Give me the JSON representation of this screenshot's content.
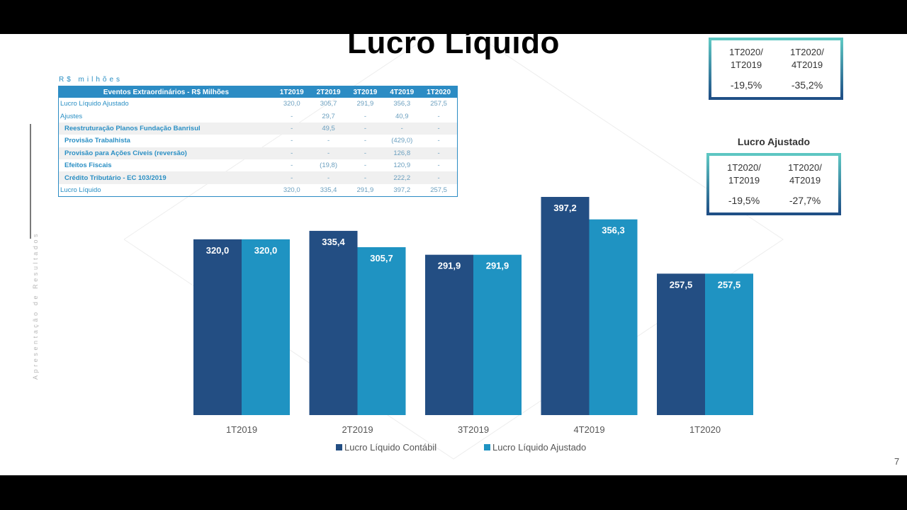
{
  "title": "Lucro Líquido",
  "unit_label": "R$ milhões",
  "side_text": "Apresentação de Resultados",
  "page_number": "7",
  "events_table": {
    "header": [
      "Eventos Extraordinários - R$ Milhões",
      "1T2019",
      "2T2019",
      "3T2019",
      "4T2019",
      "1T2020"
    ],
    "rows": [
      {
        "label": "Lucro Líquido Ajustado",
        "values": [
          "320,0",
          "305,7",
          "291,9",
          "356,3",
          "257,5"
        ]
      },
      {
        "label": "Ajustes",
        "values": [
          "-",
          "29,7",
          "-",
          "40,9",
          "-"
        ]
      },
      {
        "label": "Reestruturação Planos Fundação Banrisul",
        "values": [
          "-",
          "49,5",
          "-",
          "-",
          "-"
        ]
      },
      {
        "label": "Provisão Trabalhista",
        "values": [
          "-",
          "-",
          "-",
          "(429,0)",
          "-"
        ]
      },
      {
        "label": "Provisão para Ações Cíveis (reversão)",
        "values": [
          "-",
          "-",
          "-",
          "126,8",
          "-"
        ]
      },
      {
        "label": "Efeitos Fiscais",
        "values": [
          "-",
          "(19,8)",
          "-",
          "120,9",
          "-"
        ]
      },
      {
        "label": "Crédito Tributário - EC 103/2019",
        "values": [
          "-",
          "-",
          "-",
          "222,2",
          "-"
        ]
      },
      {
        "label": "Lucro Líquido",
        "values": [
          "320,0",
          "335,4",
          "291,9",
          "397,2",
          "257,5"
        ]
      }
    ]
  },
  "kpi_box_1": {
    "cols": [
      {
        "label_top": "1T2020/",
        "label_bottom": "1T2019",
        "value": "-19,5%"
      },
      {
        "label_top": "1T2020/",
        "label_bottom": "4T2019",
        "value": "-35,2%"
      }
    ]
  },
  "kpi_box_2": {
    "title": "Lucro Ajustado",
    "cols": [
      {
        "label_top": "1T2020/",
        "label_bottom": "1T2019",
        "value": "-19,5%"
      },
      {
        "label_top": "1T2020/",
        "label_bottom": "4T2019",
        "value": "-27,7%"
      }
    ]
  },
  "chart_data": {
    "type": "bar",
    "categories": [
      "1T2019",
      "2T2019",
      "3T2019",
      "4T2019",
      "1T2020"
    ],
    "series": [
      {
        "name": "Lucro Líquido Contábil",
        "values": [
          320.0,
          335.4,
          291.9,
          397.2,
          257.5
        ],
        "labels": [
          "320,0",
          "335,4",
          "291,9",
          "397,2",
          "257,5"
        ],
        "color": "#234e83"
      },
      {
        "name": "Lucro Líquido Ajustado",
        "values": [
          320.0,
          305.7,
          291.9,
          356.3,
          257.5
        ],
        "labels": [
          "320,0",
          "305,7",
          "291,9",
          "356,3",
          "257,5"
        ],
        "color": "#1f93c2"
      }
    ],
    "ylim": [
      0,
      397.2
    ],
    "grid": false,
    "legend_position": "bottom",
    "colors": {
      "label_color": "#ffffff",
      "axis_text": "#555555"
    }
  }
}
